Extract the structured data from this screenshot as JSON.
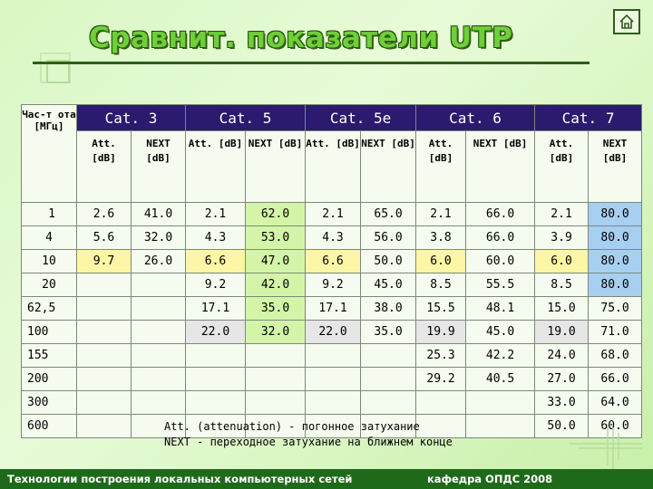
{
  "title": "Сравнит. показатели UTP",
  "table": {
    "corner_label": "Час-т ота [МГц]",
    "categories": [
      "Cat. 3",
      "Cat. 5",
      "Cat. 5e",
      "Cat. 6",
      "Cat. 7"
    ],
    "att_label": "Att. [dB]",
    "next_label": "NEXT [dB]",
    "rows": [
      {
        "freq": "1",
        "cells": [
          "2.6",
          "41.0",
          "2.1",
          "62.0",
          "2.1",
          "65.0",
          "2.1",
          "66.0",
          "2.1",
          "80.0"
        ]
      },
      {
        "freq": "4",
        "cells": [
          "5.6",
          "32.0",
          "4.3",
          "53.0",
          "4.3",
          "56.0",
          "3.8",
          "66.0",
          "3.9",
          "80.0"
        ]
      },
      {
        "freq": "10",
        "cells": [
          "9.7",
          "26.0",
          "6.6",
          "47.0",
          "6.6",
          "50.0",
          "6.0",
          "60.0",
          "6.0",
          "80.0"
        ]
      },
      {
        "freq": "20",
        "cells": [
          "",
          "",
          "9.2",
          "42.0",
          "9.2",
          "45.0",
          "8.5",
          "55.5",
          "8.5",
          "80.0"
        ]
      },
      {
        "freq": "62,5",
        "cells": [
          "",
          "",
          "17.1",
          "35.0",
          "17.1",
          "38.0",
          "15.5",
          "48.1",
          "15.0",
          "75.0"
        ]
      },
      {
        "freq": "100",
        "cells": [
          "",
          "",
          "22.0",
          "32.0",
          "22.0",
          "35.0",
          "19.9",
          "45.0",
          "19.0",
          "71.0"
        ]
      },
      {
        "freq": "155",
        "cells": [
          "",
          "",
          "",
          "",
          "",
          "",
          "25.3",
          "42.2",
          "24.0",
          "68.0"
        ]
      },
      {
        "freq": "200",
        "cells": [
          "",
          "",
          "",
          "",
          "",
          "",
          "29.2",
          "40.5",
          "27.0",
          "66.0"
        ]
      },
      {
        "freq": "300",
        "cells": [
          "",
          "",
          "",
          "",
          "",
          "",
          "",
          "",
          "33.0",
          "64.0"
        ]
      },
      {
        "freq": "600",
        "cells": [
          "",
          "",
          "",
          "",
          "",
          "",
          "",
          "",
          "50.0",
          "60.0"
        ]
      }
    ],
    "highlights": {
      "yellow": "#fdf6a6",
      "green": "#d4f5a8",
      "blue": "#a7cff0",
      "gray": "#e6e6e6"
    }
  },
  "notes": {
    "line1": "Att. (attenuation) - погонное затухание",
    "line2": "NEXT - переходное затухание на ближнем конце"
  },
  "footer": {
    "left": "Технологии построения локальных компьютерных сетей",
    "right": "кафедра ОПДС   2008"
  },
  "icons": {
    "home": "home-icon"
  }
}
